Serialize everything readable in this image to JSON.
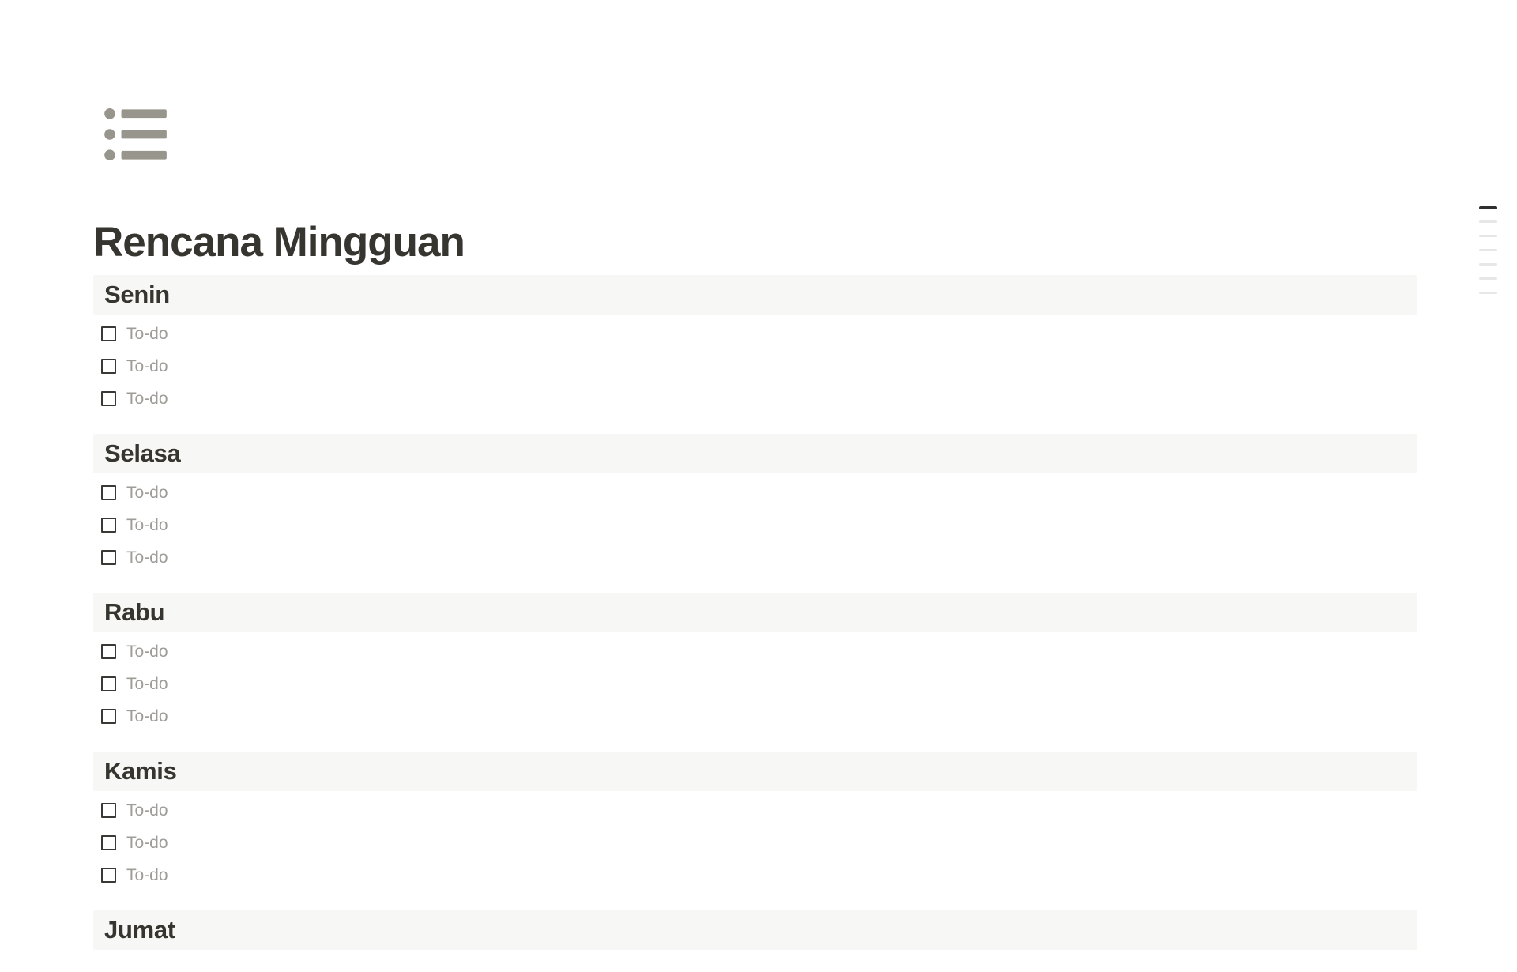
{
  "page": {
    "title": "Rencana Mingguan",
    "icon": "bulleted-list-icon"
  },
  "sections": [
    {
      "heading": "Senin",
      "todos": [
        "To-do",
        "To-do",
        "To-do"
      ]
    },
    {
      "heading": "Selasa",
      "todos": [
        "To-do",
        "To-do",
        "To-do"
      ]
    },
    {
      "heading": "Rabu",
      "todos": [
        "To-do",
        "To-do",
        "To-do"
      ]
    },
    {
      "heading": "Kamis",
      "todos": [
        "To-do",
        "To-do",
        "To-do"
      ]
    },
    {
      "heading": "Jumat",
      "todos": []
    }
  ],
  "outline": {
    "dash_count": 7,
    "active_index": 0
  },
  "colors": {
    "text_dark": "#37352F",
    "heading_bar_bg": "#F7F7F5",
    "todo_text": "#9E9C97",
    "checkbox_border": "#3A3935",
    "icon_gray": "#98968C",
    "outline_active": "#30302E",
    "outline_inactive": "#E8E7E5"
  }
}
